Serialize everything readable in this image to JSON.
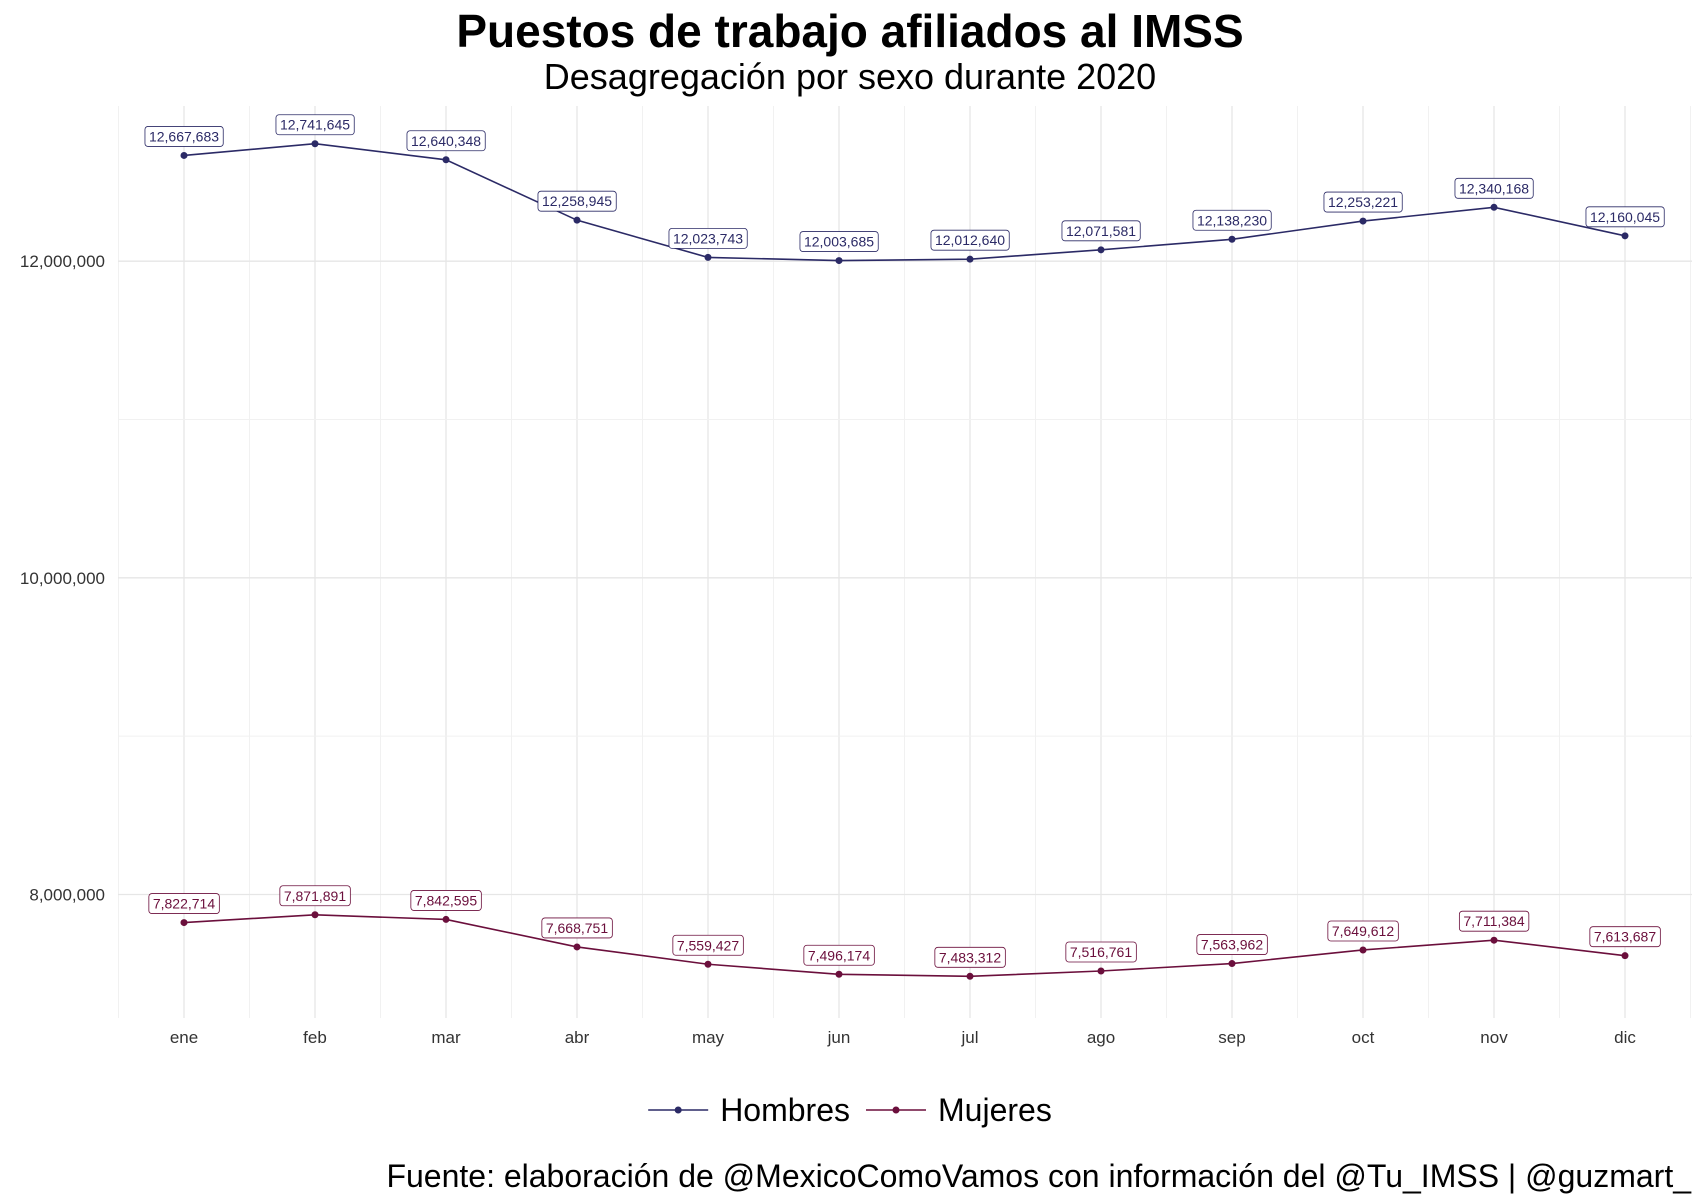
{
  "chart_data": {
    "type": "line",
    "title": "Puestos de trabajo afiliados al IMSS",
    "subtitle": "Desagregación por sexo durante 2020",
    "caption": "Fuente: elaboración de @MexicoComoVamos con información del @Tu_IMSS | @guzmart_",
    "xlabel": "",
    "ylabel": "",
    "categories": [
      "ene",
      "feb",
      "mar",
      "abr",
      "may",
      "jun",
      "jul",
      "ago",
      "sep",
      "oct",
      "nov",
      "dic"
    ],
    "ylim": [
      7220000,
      12980000
    ],
    "y_ticks": [
      8000000,
      10000000,
      12000000
    ],
    "y_tick_labels": [
      "8,000,000",
      "10,000,000",
      "12,000,000"
    ],
    "grid": true,
    "legend_position": "bottom",
    "series": [
      {
        "name": "Hombres",
        "color": "#2b2a66",
        "values": [
          12667683,
          12741645,
          12640348,
          12258945,
          12023743,
          12003685,
          12012640,
          12071581,
          12138230,
          12253221,
          12340168,
          12160045
        ],
        "labels": [
          "12,667,683",
          "12,741,645",
          "12,640,348",
          "12,258,945",
          "12,023,743",
          "12,003,685",
          "12,012,640",
          "12,071,581",
          "12,138,230",
          "12,253,221",
          "12,340,168",
          "12,160,045"
        ]
      },
      {
        "name": "Mujeres",
        "color": "#6b0f3c",
        "values": [
          7822714,
          7871891,
          7842595,
          7668751,
          7559427,
          7496174,
          7483312,
          7516761,
          7563962,
          7649612,
          7711384,
          7613687
        ],
        "labels": [
          "7,822,714",
          "7,871,891",
          "7,842,595",
          "7,668,751",
          "7,559,427",
          "7,496,174",
          "7,483,312",
          "7,516,761",
          "7,563,962",
          "7,649,612",
          "7,711,384",
          "7,613,687"
        ]
      }
    ]
  }
}
